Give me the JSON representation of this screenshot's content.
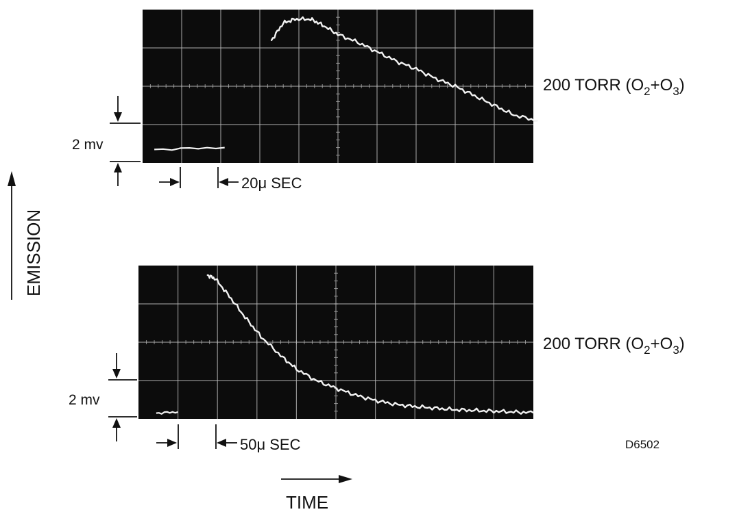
{
  "chart_data": [
    {
      "type": "line",
      "panel": "top",
      "condition_label": "200 TORR (O",
      "condition_sub1": "2",
      "condition_plus": "+O",
      "condition_sub2": "3",
      "condition_close": ")",
      "volt_label": "2 mv",
      "time_label": "20μ SEC",
      "x_divisions": 10,
      "y_divisions": 4,
      "baseline": {
        "x": [
          0.3,
          2.1
        ],
        "y": [
          0.35,
          0.4
        ]
      },
      "series": [
        {
          "x": [
            3.3,
            3.6,
            3.9,
            4.3,
            4.6,
            5.0,
            5.5,
            6.0,
            6.5,
            7.0,
            7.5,
            8.0,
            8.5,
            9.0,
            9.5,
            10.1
          ],
          "y": [
            3.2,
            3.65,
            3.75,
            3.75,
            3.6,
            3.35,
            3.15,
            2.9,
            2.65,
            2.45,
            2.2,
            2.0,
            1.75,
            1.5,
            1.25,
            1.1
          ]
        }
      ]
    },
    {
      "type": "line",
      "panel": "bottom",
      "condition_label": "200 TORR (O",
      "condition_sub1": "2",
      "condition_plus": "+O",
      "condition_sub2": "3",
      "condition_close": ")",
      "volt_label": "2 mv",
      "time_label": "50μ SEC",
      "x_divisions": 10,
      "y_divisions": 4,
      "baseline": {
        "x": [
          0.45,
          1.0
        ],
        "y": [
          0.15,
          0.18
        ]
      },
      "series": [
        {
          "x": [
            1.75,
            1.95,
            2.3,
            2.7,
            3.1,
            3.6,
            4.0,
            4.5,
            5.0,
            5.5,
            6.0,
            6.5,
            7.0,
            7.5,
            8.0,
            8.5,
            9.0,
            9.5,
            10.0
          ],
          "y": [
            3.75,
            3.65,
            3.2,
            2.65,
            2.15,
            1.65,
            1.3,
            1.0,
            0.8,
            0.62,
            0.48,
            0.38,
            0.32,
            0.28,
            0.24,
            0.22,
            0.2,
            0.18,
            0.16
          ]
        }
      ]
    }
  ],
  "y_axis_label": "EMISSION",
  "x_axis_label": "TIME",
  "figure_code": "D6502"
}
